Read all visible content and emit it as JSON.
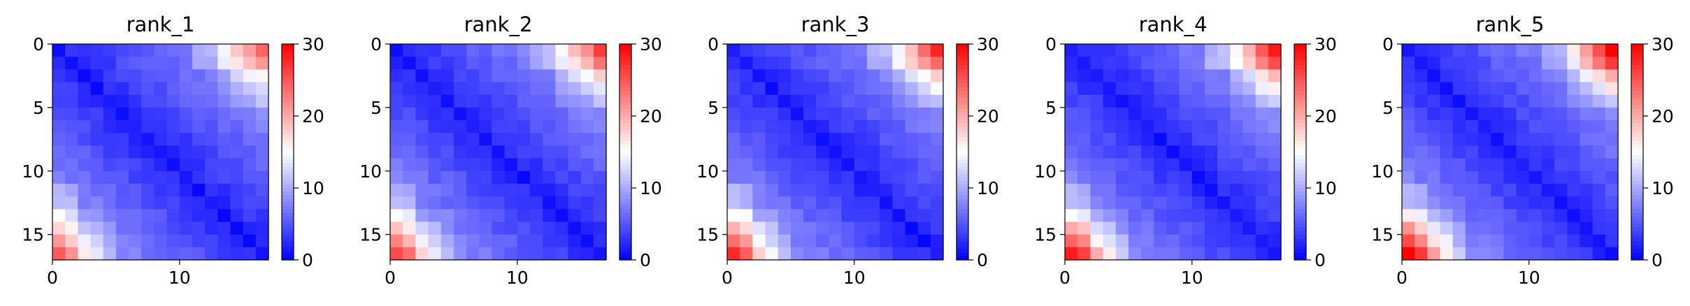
{
  "colormap": {
    "name": "bwr",
    "low": "#0000ff",
    "mid": "#ffffff",
    "high": "#ff0000"
  },
  "chart_data": [
    {
      "type": "heatmap",
      "title": "rank_1",
      "xlabel": "",
      "ylabel": "",
      "xticks": [
        "0",
        "10"
      ],
      "yticks": [
        "0",
        "5",
        "10",
        "15"
      ],
      "colorbar": {
        "range": [
          0,
          30
        ],
        "ticks": [
          "0",
          "10",
          "20",
          "30"
        ]
      },
      "variant": 0
    },
    {
      "type": "heatmap",
      "title": "rank_2",
      "xlabel": "",
      "ylabel": "",
      "xticks": [
        "0",
        "10"
      ],
      "yticks": [
        "0",
        "5",
        "10",
        "15"
      ],
      "colorbar": {
        "range": [
          0,
          30
        ],
        "ticks": [
          "0",
          "10",
          "20",
          "30"
        ]
      },
      "variant": 1
    },
    {
      "type": "heatmap",
      "title": "rank_3",
      "xlabel": "",
      "ylabel": "",
      "xticks": [
        "0",
        "10"
      ],
      "yticks": [
        "0",
        "5",
        "10",
        "15"
      ],
      "colorbar": {
        "range": [
          0,
          30
        ],
        "ticks": [
          "0",
          "10",
          "20",
          "30"
        ]
      },
      "variant": 2
    },
    {
      "type": "heatmap",
      "title": "rank_4",
      "xlabel": "",
      "ylabel": "",
      "xticks": [
        "0",
        "10"
      ],
      "yticks": [
        "0",
        "5",
        "10",
        "15"
      ],
      "colorbar": {
        "range": [
          0,
          30
        ],
        "ticks": [
          "0",
          "10",
          "20",
          "30"
        ]
      },
      "variant": 3
    },
    {
      "type": "heatmap",
      "title": "rank_5",
      "xlabel": "",
      "ylabel": "",
      "xticks": [
        "0",
        "10"
      ],
      "yticks": [
        "0",
        "5",
        "10",
        "15"
      ],
      "colorbar": {
        "range": [
          0,
          30
        ],
        "ticks": [
          "0",
          "10",
          "20",
          "30"
        ]
      },
      "variant": 4
    }
  ]
}
